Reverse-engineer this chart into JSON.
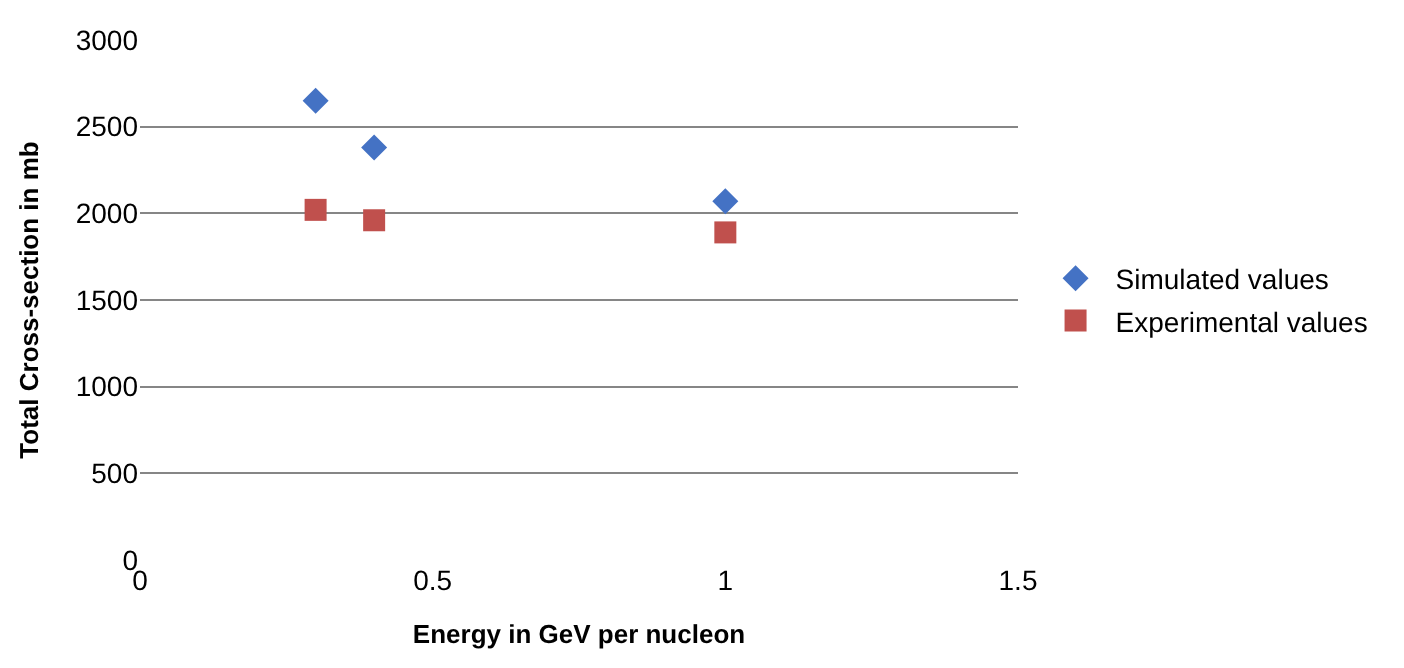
{
  "chart_data": {
    "type": "scatter",
    "xlabel": "Energy in GeV per nucleon",
    "ylabel": "Total Cross-section in mb",
    "x": [
      0.3,
      0.4,
      1.0
    ],
    "series": [
      {
        "name": "Simulated values",
        "color": "#4472c4",
        "marker": "diamond",
        "values": [
          2650,
          2380,
          2070
        ]
      },
      {
        "name": "Experimental values",
        "color": "#c0504d",
        "marker": "square",
        "values": [
          2020,
          1960,
          1890
        ]
      }
    ],
    "xlim": [
      0,
      1.5
    ],
    "xticks": [
      0,
      0.5,
      1,
      1.5
    ],
    "ylim": [
      0,
      3000
    ],
    "yticks": [
      0,
      500,
      1000,
      1500,
      2000,
      2500,
      3000
    ],
    "grid": "y",
    "legend": "right"
  }
}
